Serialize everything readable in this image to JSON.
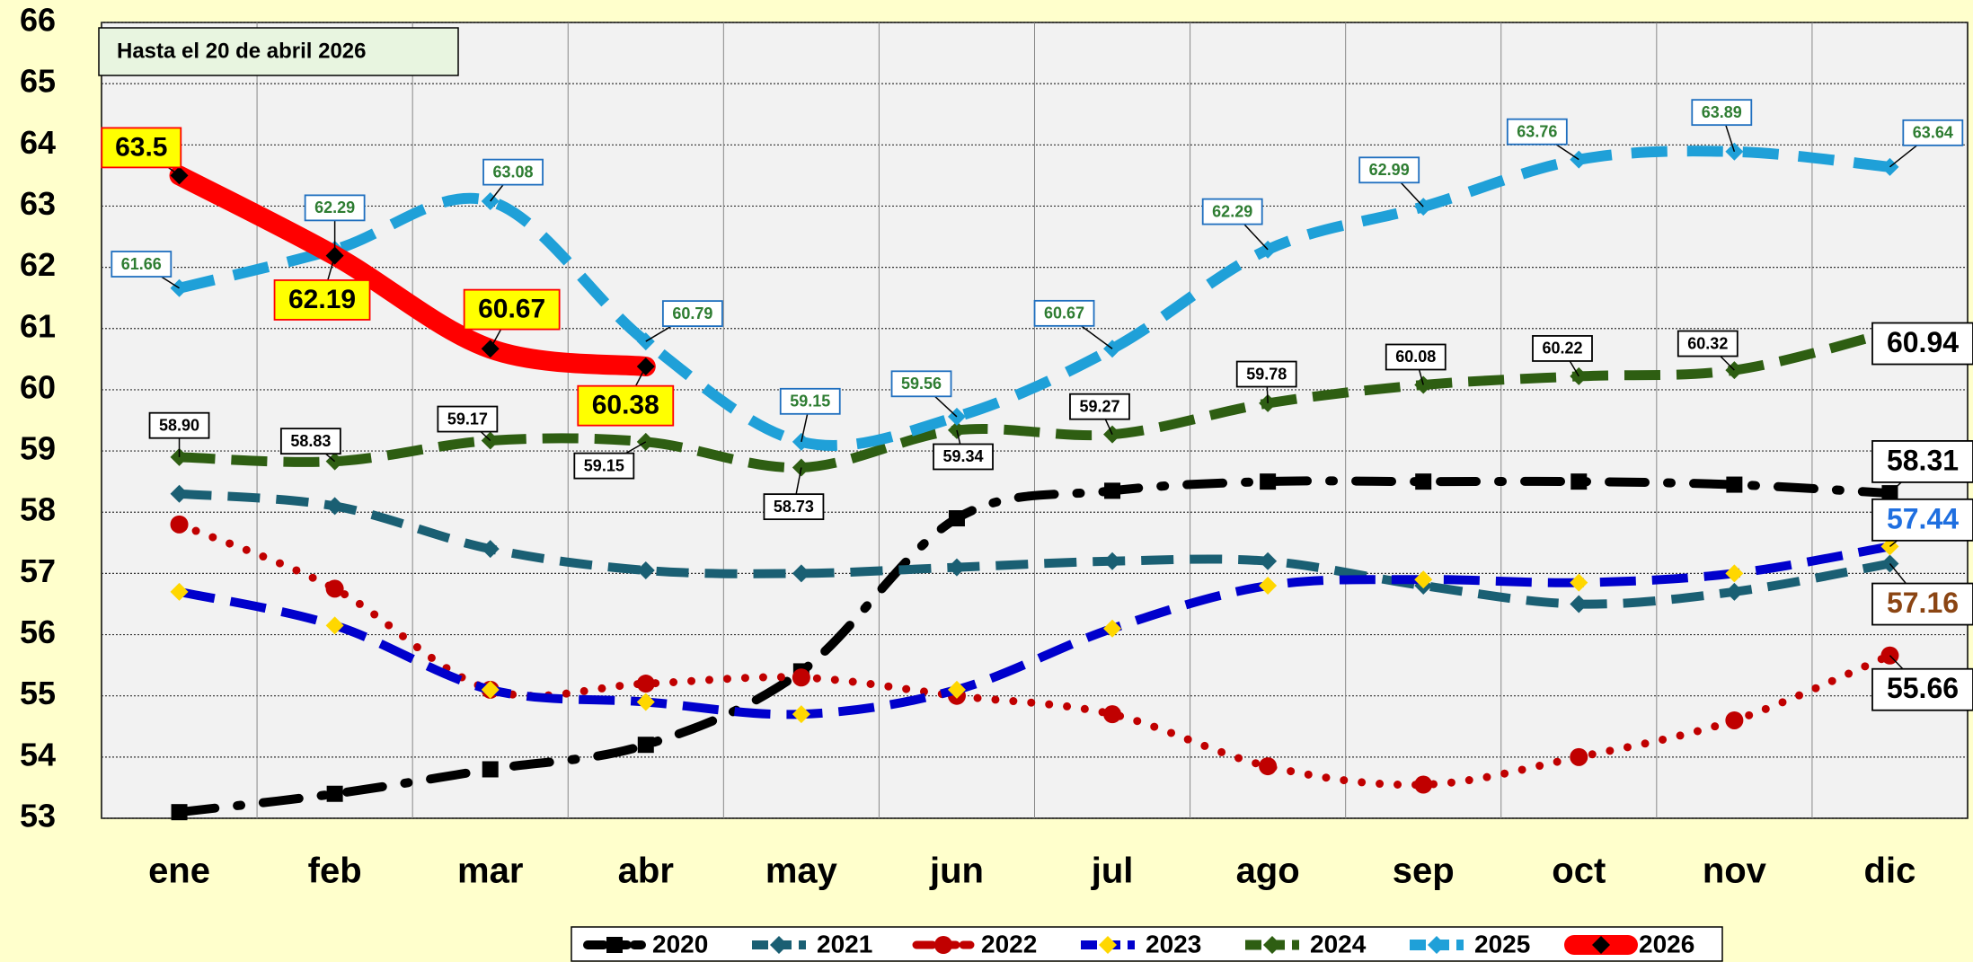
{
  "chart_data": {
    "type": "line",
    "annotation": "Hasta el 20  de abril 2026",
    "categories": [
      "ene",
      "feb",
      "mar",
      "abr",
      "may",
      "jun",
      "jul",
      "ago",
      "sep",
      "oct",
      "nov",
      "dic"
    ],
    "ylim": [
      53,
      66
    ],
    "yticks": [
      53,
      54,
      55,
      56,
      57,
      58,
      59,
      60,
      61,
      62,
      63,
      64,
      65,
      66
    ],
    "grid": true,
    "legend": "bottom",
    "series": [
      {
        "name": "2020",
        "color": "#000000",
        "values": [
          53.1,
          53.4,
          53.8,
          54.2,
          55.4,
          57.9,
          58.35,
          58.5,
          58.5,
          58.5,
          58.45,
          58.31
        ],
        "value_labels": [
          null,
          null,
          null,
          null,
          null,
          null,
          null,
          null,
          null,
          null,
          null,
          "58.31"
        ]
      },
      {
        "name": "2021",
        "color": "#1a5f73",
        "values": [
          58.3,
          58.1,
          57.4,
          57.05,
          57.0,
          57.1,
          57.2,
          57.2,
          56.8,
          56.5,
          56.7,
          57.16
        ],
        "value_labels": [
          null,
          null,
          null,
          null,
          null,
          null,
          null,
          null,
          null,
          null,
          null,
          "57.16"
        ]
      },
      {
        "name": "2022",
        "color": "#c00000",
        "values": [
          57.8,
          56.75,
          55.1,
          55.2,
          55.3,
          55.0,
          54.7,
          53.85,
          53.55,
          54.0,
          54.6,
          55.66
        ],
        "value_labels": [
          null,
          null,
          null,
          null,
          null,
          null,
          null,
          null,
          null,
          null,
          null,
          "55.66"
        ]
      },
      {
        "name": "2023",
        "color": "#0000cc",
        "values": [
          56.7,
          56.15,
          55.1,
          54.9,
          54.7,
          55.1,
          56.1,
          56.8,
          56.9,
          56.85,
          57.0,
          57.44
        ],
        "value_labels": [
          null,
          null,
          null,
          null,
          null,
          null,
          null,
          null,
          null,
          null,
          null,
          "57.44"
        ]
      },
      {
        "name": "2024",
        "color": "#2e5e12",
        "values": [
          58.9,
          58.83,
          59.17,
          59.15,
          58.73,
          59.34,
          59.27,
          59.78,
          60.08,
          60.22,
          60.32,
          60.94
        ],
        "value_labels": [
          "58.90",
          "58.83",
          "59.17",
          "59.15",
          "58.73",
          "59.34",
          "59.27",
          "59.78",
          "60.08",
          "60.22",
          "60.32",
          "60.94"
        ]
      },
      {
        "name": "2025",
        "color": "#1fa0d8",
        "values": [
          61.66,
          62.29,
          63.08,
          60.79,
          59.15,
          59.56,
          60.67,
          62.29,
          62.99,
          63.76,
          63.89,
          63.64
        ],
        "value_labels": [
          "61.66",
          "62.29",
          "63.08",
          "60.79",
          "59.15",
          "59.56",
          "60.67",
          "62.29",
          "62.99",
          "63.76",
          "63.89",
          "63.64"
        ]
      },
      {
        "name": "2026",
        "color": "#ff0000",
        "values": [
          63.5,
          62.19,
          60.67,
          60.38,
          null,
          null,
          null,
          null,
          null,
          null,
          null,
          null
        ],
        "value_labels": [
          "63.5",
          "62.19",
          "60.67",
          "60.38",
          null,
          null,
          null,
          null,
          null,
          null,
          null,
          null
        ]
      }
    ]
  }
}
